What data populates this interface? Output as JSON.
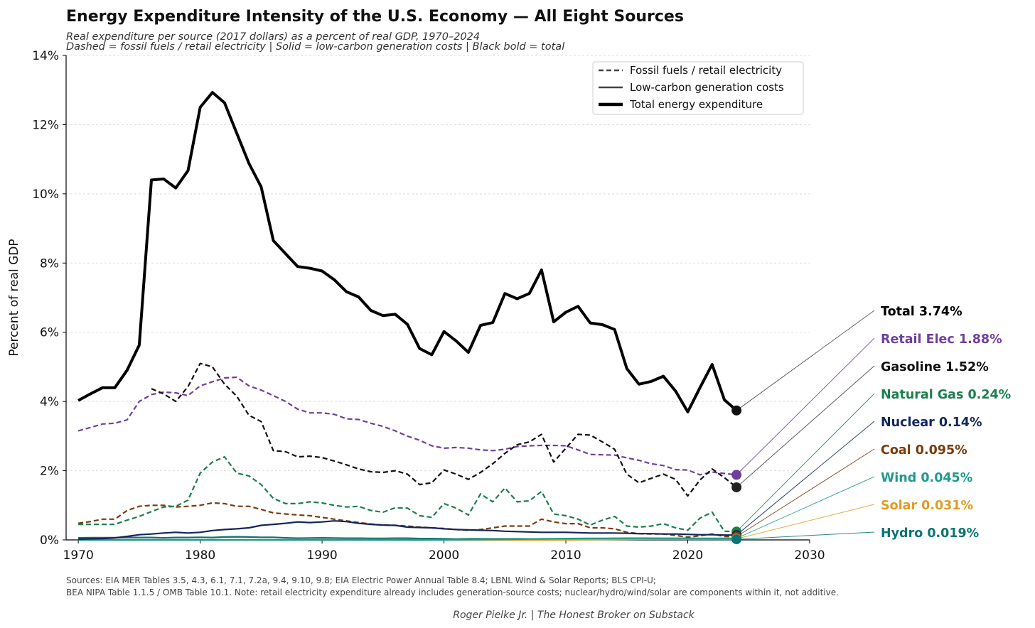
{
  "chart_data": {
    "type": "line",
    "title": "Energy Expenditure Intensity of the U.S. Economy — All Eight Sources",
    "subtitle": [
      "Real expenditure per source (2017 dollars) as a percent of real GDP, 1970–2024",
      "Dashed = fossil fuels / retail electricity  |  Solid = low-carbon generation costs  |  Black bold = total"
    ],
    "xlabel": "",
    "ylabel": "Percent of real GDP",
    "xlim": [
      1969,
      2030
    ],
    "ylim": [
      0,
      14
    ],
    "xticks": [
      1970,
      1980,
      1990,
      2000,
      2010,
      2020,
      2030
    ],
    "yticks": [
      0,
      2,
      4,
      6,
      8,
      10,
      12,
      14
    ],
    "ytick_labels": [
      "0%",
      "2%",
      "4%",
      "6%",
      "8%",
      "10%",
      "12%",
      "14%"
    ],
    "grid": "horizontal dashed",
    "legend": {
      "placement": "top-right",
      "entries": [
        {
          "label": "Fossil fuels / retail electricity",
          "style": "dashed"
        },
        {
          "label": "Low-carbon generation costs",
          "style": "solid"
        },
        {
          "label": "Total energy expenditure",
          "style": "bold"
        }
      ]
    },
    "x_start": 1970,
    "series": [
      {
        "name": "Total",
        "end_label": "Total  3.74%",
        "color": "#000000",
        "style": "bold",
        "start": 1970,
        "values": [
          4.03,
          4.22,
          4.4,
          4.4,
          4.9,
          5.63,
          10.4,
          10.43,
          10.17,
          10.67,
          12.5,
          12.93,
          12.63,
          11.75,
          10.88,
          10.2,
          8.65,
          8.27,
          7.9,
          7.85,
          7.77,
          7.52,
          7.17,
          7.02,
          6.63,
          6.48,
          6.52,
          6.23,
          5.53,
          5.35,
          6.02,
          5.75,
          5.42,
          6.2,
          6.28,
          7.12,
          6.97,
          7.12,
          7.8,
          6.3,
          6.58,
          6.75,
          6.27,
          6.22,
          6.08,
          4.95,
          4.5,
          4.58,
          4.73,
          4.3,
          3.7,
          4.4,
          5.07,
          4.05,
          3.74
        ]
      },
      {
        "name": "Retail Elec",
        "end_label": "Retail Elec  1.88%",
        "color": "#6f3f9e",
        "style": "dashed",
        "start": 1970,
        "values": [
          3.15,
          3.25,
          3.35,
          3.37,
          3.47,
          4.0,
          4.2,
          4.27,
          4.25,
          4.17,
          4.45,
          4.57,
          4.68,
          4.7,
          4.45,
          4.33,
          4.17,
          4.0,
          3.78,
          3.67,
          3.67,
          3.63,
          3.5,
          3.48,
          3.37,
          3.28,
          3.15,
          3.0,
          2.88,
          2.72,
          2.65,
          2.67,
          2.65,
          2.6,
          2.58,
          2.62,
          2.7,
          2.72,
          2.73,
          2.73,
          2.72,
          2.6,
          2.47,
          2.46,
          2.45,
          2.37,
          2.3,
          2.2,
          2.15,
          2.03,
          2.02,
          1.88,
          1.96,
          1.92,
          1.88
        ]
      },
      {
        "name": "Gasoline",
        "end_label": "Gasoline  1.52%",
        "color": "#111111",
        "style": "dashed",
        "start": 1976,
        "values": [
          4.37,
          4.22,
          4.0,
          4.43,
          5.1,
          5.0,
          4.5,
          4.15,
          3.6,
          3.42,
          2.58,
          2.55,
          2.4,
          2.42,
          2.38,
          2.28,
          2.17,
          2.05,
          1.97,
          1.95,
          2.0,
          1.9,
          1.6,
          1.65,
          2.02,
          1.9,
          1.75,
          1.95,
          2.2,
          2.5,
          2.75,
          2.83,
          3.05,
          2.25,
          2.65,
          3.05,
          3.03,
          2.83,
          2.62,
          1.9,
          1.65,
          1.78,
          1.9,
          1.75,
          1.27,
          1.73,
          2.05,
          1.8,
          1.52
        ]
      },
      {
        "name": "Natural Gas",
        "end_label": "Natural Gas  0.24%",
        "color": "#1b7f4e",
        "style": "dashed",
        "start": 1970,
        "values": [
          0.45,
          0.45,
          0.45,
          0.45,
          0.57,
          0.68,
          0.82,
          0.95,
          0.97,
          1.15,
          1.93,
          2.25,
          2.4,
          1.93,
          1.85,
          1.6,
          1.2,
          1.05,
          1.05,
          1.1,
          1.07,
          1.0,
          0.95,
          0.97,
          0.85,
          0.8,
          0.93,
          0.92,
          0.7,
          0.65,
          1.05,
          0.92,
          0.72,
          1.33,
          1.1,
          1.5,
          1.1,
          1.13,
          1.4,
          0.75,
          0.7,
          0.6,
          0.43,
          0.57,
          0.68,
          0.4,
          0.37,
          0.4,
          0.47,
          0.35,
          0.28,
          0.63,
          0.8,
          0.25,
          0.24
        ]
      },
      {
        "name": "Nuclear",
        "end_label": "Nuclear  0.14%",
        "color": "#13265c",
        "style": "solid",
        "start": 1970,
        "values": [
          0.02,
          0.03,
          0.04,
          0.06,
          0.1,
          0.15,
          0.17,
          0.2,
          0.22,
          0.2,
          0.22,
          0.27,
          0.3,
          0.32,
          0.35,
          0.42,
          0.45,
          0.48,
          0.52,
          0.5,
          0.52,
          0.55,
          0.53,
          0.48,
          0.45,
          0.43,
          0.42,
          0.37,
          0.36,
          0.35,
          0.32,
          0.3,
          0.29,
          0.28,
          0.27,
          0.25,
          0.24,
          0.23,
          0.22,
          0.22,
          0.22,
          0.21,
          0.2,
          0.2,
          0.2,
          0.19,
          0.18,
          0.18,
          0.17,
          0.17,
          0.16,
          0.15,
          0.15,
          0.14,
          0.14
        ]
      },
      {
        "name": "Coal",
        "end_label": "Coal  0.095%",
        "color": "#7a3b0c",
        "style": "dashed",
        "start": 1970,
        "values": [
          0.48,
          0.53,
          0.6,
          0.6,
          0.85,
          0.97,
          1.0,
          1.0,
          0.95,
          0.97,
          1.0,
          1.07,
          1.05,
          0.97,
          0.97,
          0.88,
          0.78,
          0.75,
          0.72,
          0.7,
          0.65,
          0.6,
          0.55,
          0.5,
          0.46,
          0.43,
          0.42,
          0.4,
          0.37,
          0.35,
          0.33,
          0.3,
          0.28,
          0.3,
          0.35,
          0.4,
          0.4,
          0.4,
          0.6,
          0.52,
          0.47,
          0.47,
          0.35,
          0.35,
          0.32,
          0.22,
          0.18,
          0.17,
          0.17,
          0.13,
          0.08,
          0.12,
          0.17,
          0.1,
          0.095
        ]
      },
      {
        "name": "Wind",
        "end_label": "Wind  0.045%",
        "color": "#1e9a8a",
        "style": "solid",
        "start": 1970,
        "values": [
          0,
          0,
          0,
          0,
          0,
          0,
          0,
          0,
          0,
          0,
          0,
          0,
          0,
          0,
          0,
          0,
          0,
          0,
          0,
          0,
          0,
          0,
          0,
          0,
          0,
          0,
          0,
          0,
          0,
          0.002,
          0.003,
          0.005,
          0.007,
          0.01,
          0.012,
          0.015,
          0.02,
          0.025,
          0.03,
          0.035,
          0.04,
          0.042,
          0.045,
          0.045,
          0.047,
          0.05,
          0.05,
          0.05,
          0.048,
          0.048,
          0.047,
          0.046,
          0.046,
          0.045,
          0.045
        ]
      },
      {
        "name": "Solar",
        "end_label": "Solar  0.031%",
        "color": "#e29c22",
        "style": "solid",
        "start": 1970,
        "values": [
          0,
          0,
          0,
          0,
          0,
          0,
          0,
          0,
          0,
          0,
          0,
          0,
          0,
          0,
          0,
          0,
          0,
          0,
          0,
          0,
          0,
          0,
          0,
          0,
          0,
          0,
          0,
          0,
          0,
          0,
          0,
          0,
          0,
          0,
          0,
          0,
          0,
          0,
          0,
          0.001,
          0.002,
          0.004,
          0.008,
          0.012,
          0.015,
          0.018,
          0.022,
          0.025,
          0.027,
          0.028,
          0.029,
          0.03,
          0.031,
          0.031,
          0.031
        ]
      },
      {
        "name": "Hydro",
        "end_label": "Hydro  0.019%",
        "color": "#0b7474",
        "style": "solid",
        "start": 1970,
        "values": [
          0.06,
          0.065,
          0.065,
          0.065,
          0.07,
          0.07,
          0.07,
          0.06,
          0.07,
          0.07,
          0.075,
          0.07,
          0.085,
          0.09,
          0.085,
          0.075,
          0.075,
          0.06,
          0.05,
          0.055,
          0.06,
          0.055,
          0.05,
          0.05,
          0.045,
          0.045,
          0.05,
          0.05,
          0.04,
          0.04,
          0.035,
          0.025,
          0.03,
          0.03,
          0.028,
          0.028,
          0.03,
          0.025,
          0.025,
          0.027,
          0.025,
          0.03,
          0.025,
          0.025,
          0.024,
          0.022,
          0.023,
          0.025,
          0.023,
          0.022,
          0.02,
          0.019,
          0.02,
          0.019,
          0.019
        ]
      }
    ],
    "label_order": [
      "Total",
      "Retail Elec",
      "Gasoline",
      "Natural Gas",
      "Nuclear",
      "Coal",
      "Wind",
      "Solar",
      "Hydro"
    ]
  },
  "footer": {
    "sources_line1": "Sources: EIA MER Tables 3.5, 4.3, 6.1, 7.1, 7.2a, 9.4, 9.10, 9.8; EIA Electric Power Annual Table 8.4; LBNL Wind & Solar Reports; BLS CPI-U;",
    "sources_line2": "BEA NIPA Table 1.1.5 / OMB Table 10.1.  Note: retail electricity expenditure already includes generation-source costs; nuclear/hydro/wind/solar are components within it, not additive.",
    "credit": "Roger Pielke Jr.  |  The Honest Broker on Substack"
  }
}
